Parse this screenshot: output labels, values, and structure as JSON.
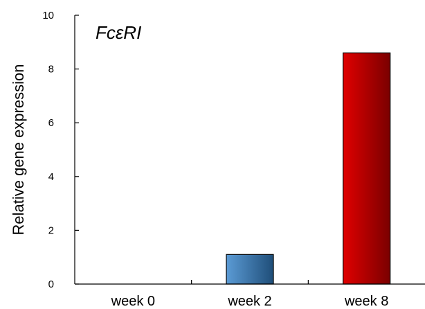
{
  "chart_data": {
    "type": "bar",
    "title": "FcεRI",
    "ylabel": "Relative gene expression",
    "xlabel": "",
    "categories": [
      "week 0",
      "week 2",
      "week 8"
    ],
    "values": [
      0,
      1.1,
      8.6
    ],
    "ylim": [
      0,
      10
    ],
    "yticks": [
      "0",
      "2",
      "4",
      "6",
      "8",
      "10"
    ],
    "grid": false,
    "bar_colors": [
      {
        "light": "#5b9bd5",
        "dark": "#1f4e79"
      },
      {
        "light": "#5b9bd5",
        "dark": "#1f4e79"
      },
      {
        "light": "#e00000",
        "dark": "#7a0000"
      }
    ]
  }
}
